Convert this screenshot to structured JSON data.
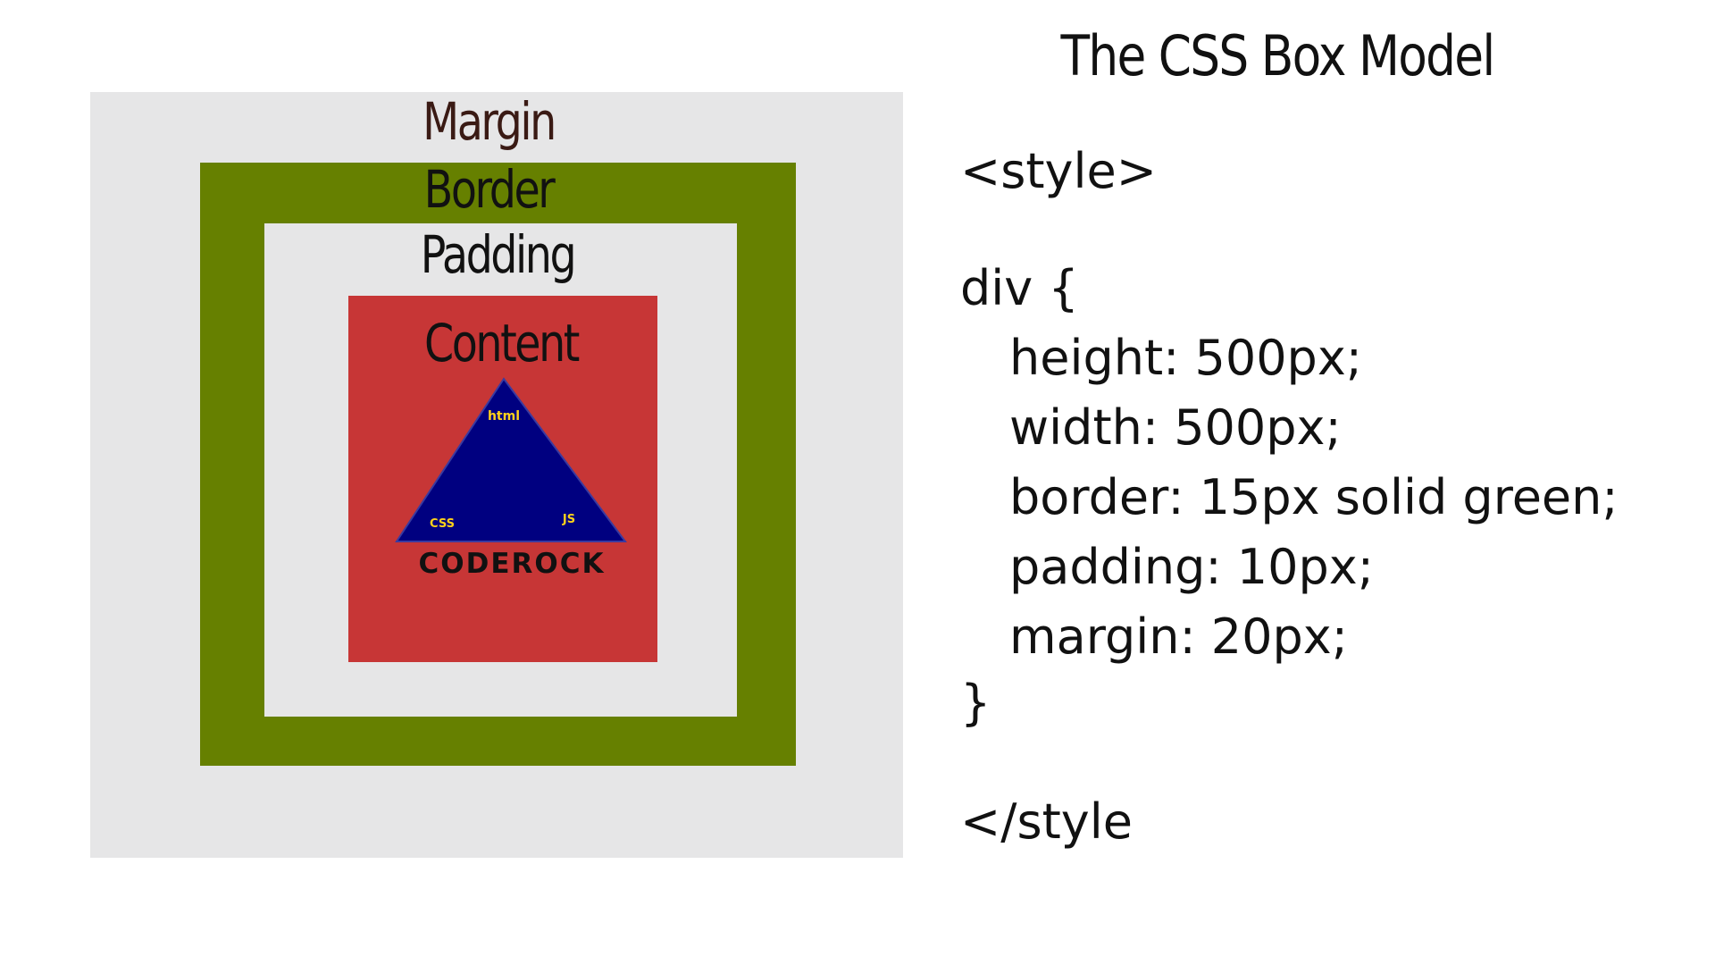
{
  "title": "The CSS Box Model",
  "diagram": {
    "margin_label": "Margin",
    "border_label": "Border",
    "padding_label": "Padding",
    "content_label": "Content",
    "logo": {
      "top_text": "html",
      "left_text": "CSS",
      "right_text": "JS",
      "brand": "CODEROCK"
    },
    "colors": {
      "margin": "#e6e6e7",
      "border": "#668000",
      "padding": "#e6e6e7",
      "content": "#c73636",
      "triangle": "#000080",
      "logo_text": "#ffd21a"
    }
  },
  "code": {
    "open_tag": "<style>",
    "selector": "div {",
    "lines": [
      "height: 500px;",
      "width: 500px;",
      "border: 15px solid green;",
      "padding: 10px;",
      "margin: 20px;"
    ],
    "close_brace": "}",
    "close_tag": "</style"
  }
}
